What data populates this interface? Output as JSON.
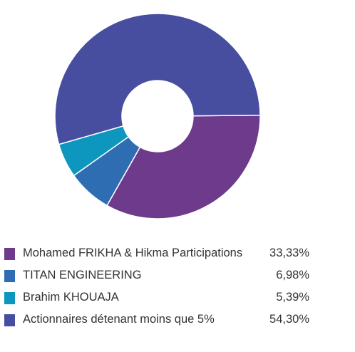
{
  "chart_data": {
    "type": "pie",
    "variant": "donut",
    "categories": [
      "Mohamed FRIKHA & Hikma Participations",
      "TITAN ENGINEERING",
      "Brahim KHOUAJA",
      "Actionnaires détenant moins que 5%"
    ],
    "values": [
      33.33,
      6.98,
      5.39,
      54.3
    ],
    "value_labels": [
      "33,33%",
      "6,98%",
      "5,39%",
      "54,30%"
    ],
    "colors": [
      "#6d3a8c",
      "#2f6db3",
      "#0d96be",
      "#474ea0"
    ],
    "legend_position": "bottom",
    "title": ""
  }
}
